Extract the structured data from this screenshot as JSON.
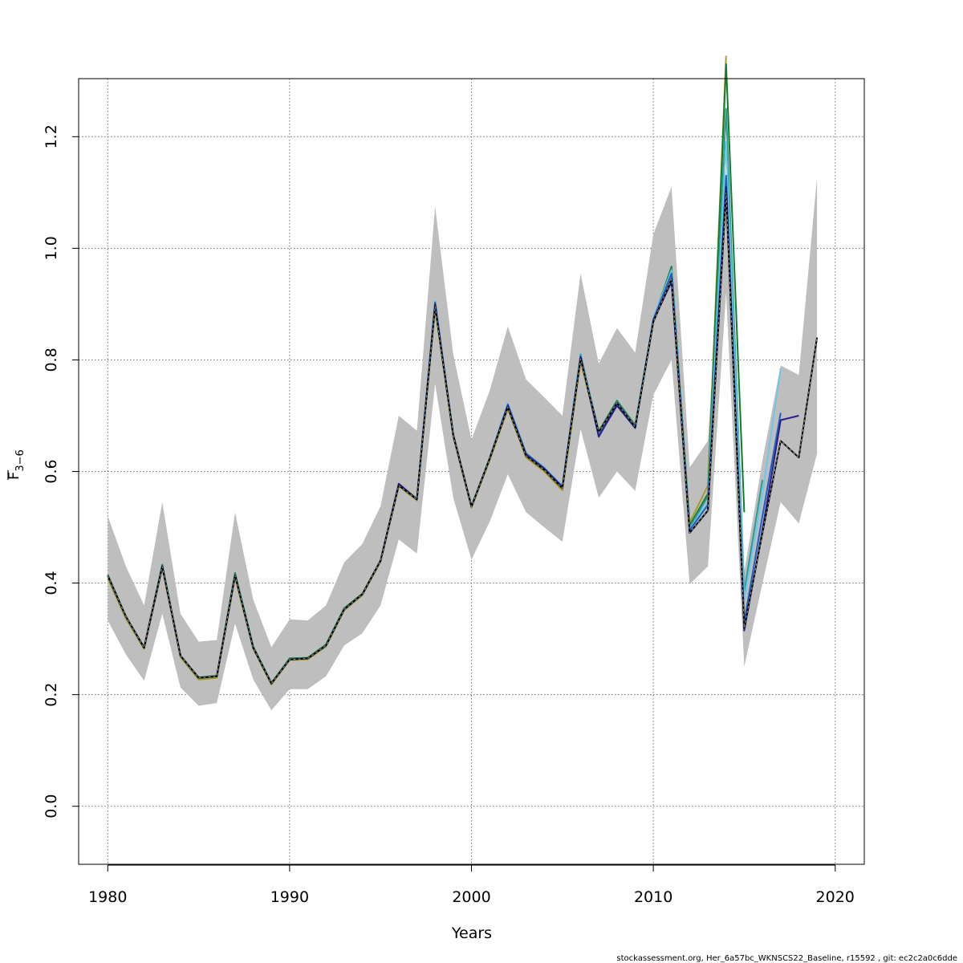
{
  "chart_data": {
    "type": "line",
    "xlabel": "Years",
    "ylabel": "F",
    "ylabel_subscript": "3−6",
    "xlim": [
      1978.4,
      2021.6
    ],
    "ylim": [
      -0.104,
      1.304
    ],
    "x_ticks": [
      1980,
      1990,
      2000,
      2010,
      2020
    ],
    "y_ticks": [
      0.0,
      0.2,
      0.4,
      0.6,
      0.8,
      1.0,
      1.2
    ],
    "x_tick_labels": [
      "1980",
      "1990",
      "2000",
      "2010",
      "2020"
    ],
    "y_tick_labels": [
      "0.0",
      "0.2",
      "0.4",
      "0.6",
      "0.8",
      "1.0",
      "1.2"
    ],
    "grid": true,
    "confidence_band": {
      "x": [
        1980,
        1981,
        1982,
        1983,
        1984,
        1985,
        1986,
        1987,
        1988,
        1989,
        1990,
        1991,
        1992,
        1993,
        1994,
        1995,
        1996,
        1997,
        1998,
        1999,
        2000,
        2001,
        2002,
        2003,
        2004,
        2005,
        2006,
        2007,
        2008,
        2009,
        2010,
        2011,
        2012,
        2013,
        2014,
        2015,
        2016,
        2017,
        2018,
        2019
      ],
      "upper": [
        0.52,
        0.43,
        0.36,
        0.545,
        0.345,
        0.295,
        0.298,
        0.527,
        0.37,
        0.285,
        0.335,
        0.333,
        0.36,
        0.437,
        0.47,
        0.538,
        0.7,
        0.673,
        1.075,
        0.81,
        0.657,
        0.745,
        0.86,
        0.765,
        0.733,
        0.7,
        0.955,
        0.793,
        0.857,
        0.813,
        1.025,
        1.11,
        0.607,
        0.655,
        1.14,
        0.42,
        0.62,
        0.79,
        0.773,
        1.127
      ],
      "lower": [
        0.333,
        0.272,
        0.225,
        0.345,
        0.213,
        0.18,
        0.185,
        0.327,
        0.227,
        0.172,
        0.21,
        0.21,
        0.233,
        0.288,
        0.31,
        0.36,
        0.478,
        0.453,
        0.757,
        0.553,
        0.442,
        0.51,
        0.595,
        0.527,
        0.5,
        0.474,
        0.676,
        0.553,
        0.6,
        0.565,
        0.737,
        0.8,
        0.398,
        0.43,
        0.92,
        0.25,
        0.4,
        0.545,
        0.507,
        0.632
      ]
    },
    "series": [
      {
        "color": "#000000",
        "dashed": true,
        "x": [
          1980,
          1981,
          1982,
          1983,
          1984,
          1985,
          1986,
          1987,
          1988,
          1989,
          1990,
          1991,
          1992,
          1993,
          1994,
          1995,
          1996,
          1997,
          1998,
          1999,
          2000,
          2001,
          2002,
          2003,
          2004,
          2005,
          2006,
          2007,
          2008,
          2009,
          2010,
          2011,
          2012,
          2013,
          2014,
          2015,
          2016,
          2017,
          2018,
          2019
        ],
        "values": [
          0.413,
          0.34,
          0.284,
          0.43,
          0.27,
          0.23,
          0.233,
          0.414,
          0.284,
          0.22,
          0.263,
          0.265,
          0.288,
          0.353,
          0.38,
          0.44,
          0.575,
          0.55,
          0.896,
          0.665,
          0.537,
          0.623,
          0.715,
          0.628,
          0.603,
          0.57,
          0.802,
          0.67,
          0.723,
          0.68,
          0.868,
          0.945,
          0.49,
          0.53,
          1.1,
          0.32,
          0.49,
          0.655,
          0.625,
          0.84
        ]
      },
      {
        "color": "#2b1d8a",
        "dashed": false,
        "x": [
          1980,
          1981,
          1982,
          1983,
          1984,
          1985,
          1986,
          1987,
          1988,
          1989,
          1990,
          1991,
          1992,
          1993,
          1994,
          1995,
          1996,
          1997,
          1998,
          1999,
          2000,
          2001,
          2002,
          2003,
          2004,
          2005,
          2006,
          2007,
          2008,
          2009,
          2010,
          2011,
          2012,
          2013,
          2014,
          2015,
          2016,
          2017,
          2018
        ],
        "values": [
          0.413,
          0.34,
          0.284,
          0.43,
          0.27,
          0.23,
          0.233,
          0.414,
          0.284,
          0.22,
          0.263,
          0.265,
          0.288,
          0.353,
          0.38,
          0.44,
          0.578,
          0.55,
          0.9,
          0.665,
          0.537,
          0.623,
          0.718,
          0.63,
          0.605,
          0.572,
          0.805,
          0.663,
          0.718,
          0.678,
          0.87,
          0.94,
          0.49,
          0.53,
          1.11,
          0.315,
          0.495,
          0.692,
          0.7
        ]
      },
      {
        "color": "#1f5fbf",
        "dashed": false,
        "x": [
          1980,
          1981,
          1982,
          1983,
          1984,
          1985,
          1986,
          1987,
          1988,
          1989,
          1990,
          1991,
          1992,
          1993,
          1994,
          1995,
          1996,
          1997,
          1998,
          1999,
          2000,
          2001,
          2002,
          2003,
          2004,
          2005,
          2006,
          2007,
          2008,
          2009,
          2010,
          2011,
          2012,
          2013,
          2014,
          2015,
          2016,
          2017
        ],
        "values": [
          0.413,
          0.34,
          0.284,
          0.43,
          0.27,
          0.23,
          0.233,
          0.414,
          0.284,
          0.22,
          0.263,
          0.265,
          0.288,
          0.353,
          0.38,
          0.44,
          0.577,
          0.55,
          0.903,
          0.665,
          0.537,
          0.623,
          0.72,
          0.632,
          0.606,
          0.573,
          0.807,
          0.662,
          0.72,
          0.678,
          0.872,
          0.955,
          0.495,
          0.54,
          1.13,
          0.33,
          0.52,
          0.705
        ]
      },
      {
        "color": "#6ec6e8",
        "dashed": false,
        "x": [
          1980,
          1981,
          1982,
          1983,
          1984,
          1985,
          1986,
          1987,
          1988,
          1989,
          1990,
          1991,
          1992,
          1993,
          1994,
          1995,
          1996,
          1997,
          1998,
          1999,
          2000,
          2001,
          2002,
          2003,
          2004,
          2005,
          2006,
          2007,
          2008,
          2009,
          2010,
          2011,
          2012,
          2013,
          2014,
          2015,
          2016,
          2017
        ],
        "values": [
          0.413,
          0.34,
          0.284,
          0.43,
          0.27,
          0.23,
          0.233,
          0.414,
          0.284,
          0.22,
          0.263,
          0.265,
          0.288,
          0.353,
          0.38,
          0.44,
          0.577,
          0.55,
          0.905,
          0.665,
          0.537,
          0.623,
          0.722,
          0.632,
          0.607,
          0.574,
          0.808,
          0.668,
          0.722,
          0.68,
          0.875,
          0.96,
          0.497,
          0.545,
          1.19,
          0.37,
          0.56,
          0.785
        ]
      },
      {
        "color": "#2a9d8f",
        "dashed": false,
        "x": [
          1980,
          1981,
          1982,
          1983,
          1984,
          1985,
          1986,
          1987,
          1988,
          1989,
          1990,
          1991,
          1992,
          1993,
          1994,
          1995,
          1996,
          1997,
          1998,
          1999,
          2000,
          2001,
          2002,
          2003,
          2004,
          2005,
          2006,
          2007,
          2008,
          2009,
          2010,
          2011,
          2012,
          2013,
          2014,
          2015,
          2016
        ],
        "values": [
          0.413,
          0.34,
          0.284,
          0.432,
          0.27,
          0.23,
          0.233,
          0.416,
          0.285,
          0.22,
          0.264,
          0.265,
          0.289,
          0.354,
          0.38,
          0.44,
          0.577,
          0.55,
          0.905,
          0.666,
          0.537,
          0.624,
          0.722,
          0.633,
          0.607,
          0.574,
          0.81,
          0.67,
          0.725,
          0.682,
          0.873,
          0.963,
          0.5,
          0.555,
          1.25,
          0.385,
          0.585
        ]
      },
      {
        "color": "#137a2c",
        "dashed": false,
        "x": [
          1980,
          1981,
          1982,
          1983,
          1984,
          1985,
          1986,
          1987,
          1988,
          1989,
          1990,
          1991,
          1992,
          1993,
          1994,
          1995,
          1996,
          1997,
          1998,
          1999,
          2000,
          2001,
          2002,
          2003,
          2004,
          2005,
          2006,
          2007,
          2008,
          2009,
          2010,
          2011,
          2012,
          2013,
          2014,
          2015
        ],
        "values": [
          0.415,
          0.34,
          0.285,
          0.433,
          0.27,
          0.231,
          0.234,
          0.418,
          0.286,
          0.221,
          0.265,
          0.266,
          0.29,
          0.355,
          0.381,
          0.441,
          0.578,
          0.551,
          0.9,
          0.667,
          0.538,
          0.624,
          0.72,
          0.632,
          0.607,
          0.573,
          0.805,
          0.672,
          0.727,
          0.683,
          0.872,
          0.967,
          0.503,
          0.56,
          1.33,
          0.527
        ]
      },
      {
        "color": "#a89b2b",
        "dashed": false,
        "x": [
          1980,
          1981,
          1982,
          1983,
          1984,
          1985,
          1986,
          1987,
          1988,
          1989,
          1990,
          1991,
          1992,
          1993,
          1994,
          1995,
          1996,
          1997,
          1998,
          1999,
          2000,
          2001,
          2002,
          2003,
          2004,
          2005,
          2006,
          2007,
          2008,
          2009,
          2010,
          2011,
          2012,
          2013,
          2014
        ],
        "values": [
          0.408,
          0.336,
          0.282,
          0.427,
          0.267,
          0.227,
          0.23,
          0.41,
          0.282,
          0.218,
          0.262,
          0.263,
          0.286,
          0.351,
          0.378,
          0.438,
          0.574,
          0.548,
          0.893,
          0.662,
          0.535,
          0.62,
          0.712,
          0.625,
          0.6,
          0.566,
          0.797,
          0.667,
          0.722,
          0.68,
          0.868,
          0.958,
          0.508,
          0.575,
          1.345
        ]
      }
    ]
  },
  "footer": {
    "credit": "stockassessment.org, Her_6a57bc_WKNSCS22_Baseline, r15592 , git: ec2c2a0c6dde"
  }
}
